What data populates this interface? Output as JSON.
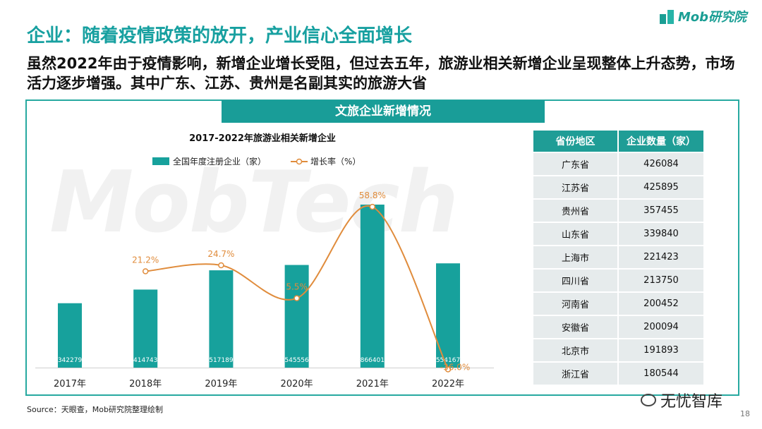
{
  "logo": {
    "text": "Mob研究院",
    "icon": "mob-logo-icon"
  },
  "title": "企业：随着疫情政策的放开，产业信心全面增长",
  "subtitle": "虽然2022年由于疫情影响，新增企业增长受阻，但过去五年，旅游业相关新增企业呈现整体上升态势，市场活力逐步增强。其中广东、江苏、贵州是名副其实的旅游大省",
  "panel": {
    "header": "文旅企业新增情况"
  },
  "watermark": "MobTech",
  "chart_data": {
    "type": "bar",
    "title": "2017-2022年旅游业相关新增企业",
    "categories": [
      "2017年",
      "2018年",
      "2019年",
      "2020年",
      "2021年",
      "2022年"
    ],
    "series": [
      {
        "name": "全国年度注册企业（家）",
        "type": "bar",
        "values": [
          342279,
          414743,
          517189,
          545556,
          866401,
          554167
        ]
      },
      {
        "name": "增长率（%）",
        "type": "line",
        "values": [
          null,
          21.2,
          24.7,
          5.5,
          58.8,
          -36.0
        ],
        "labels": [
          "",
          "21.2%",
          "24.7%",
          "5.5%",
          "58.8%",
          "-36.0%"
        ]
      }
    ],
    "colors": {
      "bar": "#17a19c",
      "line": "#e08c3c"
    }
  },
  "table": {
    "headers": [
      "省份地区",
      "企业数量（家）"
    ],
    "rows": [
      [
        "广东省",
        "426084"
      ],
      [
        "江苏省",
        "425895"
      ],
      [
        "贵州省",
        "357455"
      ],
      [
        "山东省",
        "339840"
      ],
      [
        "上海市",
        "221423"
      ],
      [
        "四川省",
        "213750"
      ],
      [
        "河南省",
        "200452"
      ],
      [
        "安徽省",
        "200094"
      ],
      [
        "北京市",
        "191893"
      ],
      [
        "浙江省",
        "180544"
      ]
    ]
  },
  "source": "Source：天眼查，Mob研究院整理绘制",
  "brand": "无忧智库",
  "page_number": "18"
}
